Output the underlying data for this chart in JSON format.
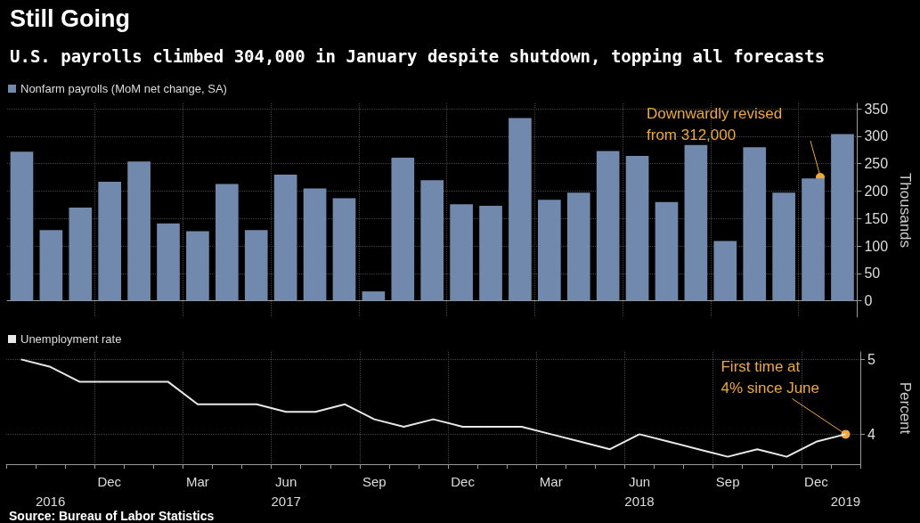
{
  "chart_data": [
    {
      "type": "bar",
      "title": "Still Going",
      "subtitle": "U.S. payrolls climbed 304,000 in January despite shutdown, topping all forecasts",
      "ylabel": "Thousands",
      "categories": [
        null,
        null,
        null,
        null,
        null,
        null,
        null,
        null,
        null,
        null,
        null,
        null,
        null,
        null,
        null,
        null,
        null,
        null,
        null,
        null,
        null,
        null,
        null,
        null,
        null,
        null,
        null,
        null,
        null
      ],
      "series": [
        {
          "name": "Nonfarm payrolls (MoM net change, SA)",
          "color": "#7189ad",
          "values": [
            272,
            129,
            170,
            217,
            254,
            141,
            127,
            213,
            129,
            230,
            205,
            187,
            17,
            261,
            220,
            176,
            173,
            333,
            184,
            197,
            273,
            264,
            180,
            284,
            109,
            280,
            197,
            223,
            304
          ]
        }
      ],
      "ylim": [
        -30,
        360
      ],
      "yticks": [
        0,
        50,
        100,
        150,
        200,
        250,
        300,
        350
      ],
      "grid": true,
      "legend": "top left",
      "tick_labels": "y",
      "annotations": [
        "Downwardly revised\nfrom 312,000"
      ]
    },
    {
      "type": "line",
      "ylabel": "Percent",
      "categories": [
        null,
        "\n2016",
        null,
        "Dec",
        null,
        null,
        "Mar",
        null,
        null,
        "Jun\n2017",
        null,
        null,
        "Sep",
        null,
        null,
        "Dec",
        null,
        null,
        "Mar",
        null,
        null,
        "Jun\n2018",
        null,
        null,
        "Sep",
        null,
        null,
        "Dec",
        "\n2019"
      ],
      "series": [
        {
          "name": "Unemployment rate",
          "color": "#e8e8e8",
          "values": [
            5.0,
            4.9,
            4.7,
            4.7,
            4.7,
            4.7,
            4.4,
            4.4,
            4.4,
            4.3,
            4.3,
            4.4,
            4.2,
            4.1,
            4.2,
            4.1,
            4.1,
            4.1,
            4.0,
            3.9,
            3.8,
            4.0,
            3.9,
            3.8,
            3.7,
            3.8,
            3.7,
            3.9,
            4.0
          ]
        }
      ],
      "ylim": [
        3.6,
        5.1
      ],
      "yticks": [
        4,
        5
      ],
      "grid": true,
      "legend": "top left",
      "marker": "none",
      "line_style": "solid",
      "annotations": [
        {
          "text": "First time at\n4% since June",
          "x": "\n2019",
          "y": 4.0
        },
        "Source: Bureau of Labor Statistics"
      ]
    }
  ]
}
